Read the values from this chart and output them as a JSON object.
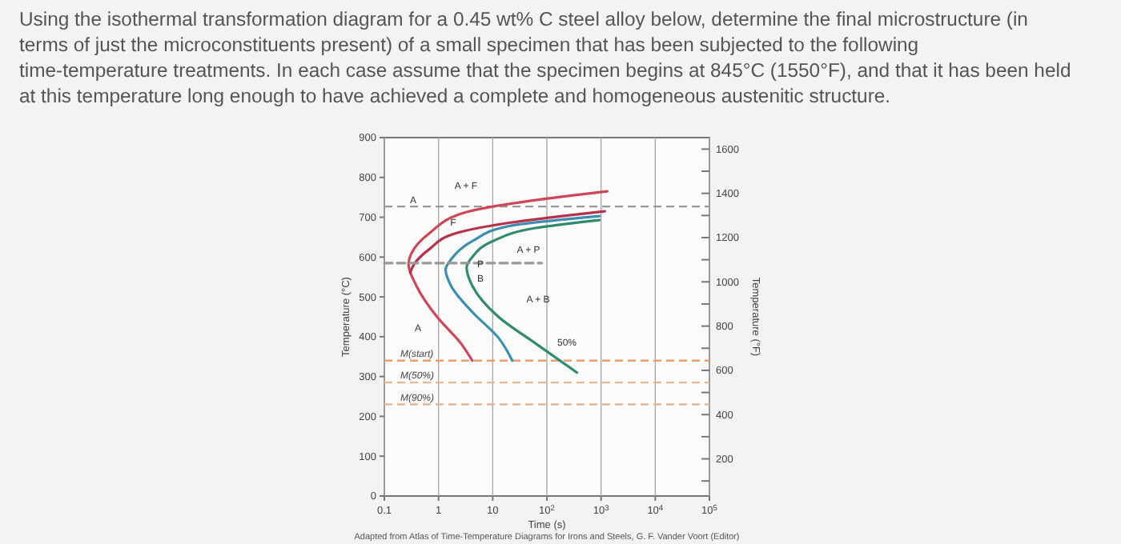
{
  "chart_data": {
    "type": "line",
    "title": "Using the isothermal transformation diagram for a 0.45 wt% C steel alloy below, determine the final microstructure (in terms of just the microconstituents present) of a small specimen that has been subjected to the following time-temperature treatments. In each case assume that the specimen begins at 845°C (1550°F), and that it has been held at this temperature long enough to have achieved a complete and homogeneous austenitic structure.",
    "xlabel": "Time (s)",
    "ylabel": "Temperature (°C)",
    "y2label": "Temperature (°F)",
    "log": "x",
    "grid": "x",
    "marker": "none",
    "xlim": [
      0.1,
      100000
    ],
    "xticks": [
      0.1,
      1,
      10,
      {
        "value": 100,
        "label": "10$^{2}$"
      },
      {
        "value": 1000,
        "label": "10$^{3}$"
      },
      {
        "value": 10000,
        "label": "10$^{4}$"
      },
      {
        "value": 100000,
        "label": "10$^{5}$"
      }
    ],
    "ylim": [
      0,
      900
    ],
    "yticks": [
      0,
      100,
      200,
      300,
      400,
      500,
      600,
      700,
      800,
      900
    ],
    "y2lim": [
      32,
      1652
    ],
    "y2ticks": [
      {
        "value": 100,
        "label": null
      },
      200,
      {
        "value": 300,
        "label": null
      },
      400,
      {
        "value": 500,
        "label": null
      },
      600,
      {
        "value": 700,
        "label": null
      },
      800,
      {
        "value": 900,
        "label": null
      },
      1000,
      {
        "value": 1100,
        "label": null
      },
      1200,
      {
        "value": 1300,
        "label": null
      },
      1400,
      {
        "value": 1500,
        "label": null
      },
      1600
    ],
    "series": [
      {
        "color": "#d0455a",
        "x": [
          1300,
          3.3,
          0.68,
          0.31,
          0.28,
          0.39,
          0.95,
          2.6,
          4.2
        ],
        "values": [
          765,
          713,
          660,
          607,
          581,
          528,
          449,
          383,
          340
        ]
      },
      {
        "color": "#b8304a",
        "x": [
          1170,
          20,
          2.1,
          0.68,
          0.35,
          0.3
        ],
        "values": [
          715,
          686,
          660,
          620,
          581,
          561
        ]
      },
      {
        "color": "#3a8fb0",
        "x": [
          930,
          20,
          4.2,
          1.7,
          1.35,
          1.7,
          4.2,
          13,
          23
        ],
        "values": [
          703,
          678,
          640,
          594,
          568,
          528,
          462,
          396,
          340
        ]
      },
      {
        "color": "#2e8b6e",
        "x": [
          930,
          62,
          10,
          4.2,
          3.3,
          4.2,
          13,
          62,
          360
        ],
        "values": [
          693,
          673,
          640,
          600,
          574,
          528,
          449,
          383,
          310
        ]
      },
      {
        "color": "#999999",
        "line_style": "dashed",
        "x": [
          0.1,
          80
        ],
        "values": [
          585,
          585
        ]
      }
    ],
    "ref_lines": [
      {
        "axis": "y",
        "value": 727,
        "color": "#999999",
        "line_style": "dashed"
      },
      {
        "axis": "y",
        "value": 340,
        "label": "M(start)",
        "color": "#e8a070",
        "line_style": "dashed"
      },
      {
        "axis": "y",
        "value": 285,
        "label": "M(50%)",
        "color": "#e8b890",
        "line_style": "dashed"
      },
      {
        "axis": "y",
        "value": 230,
        "label": "M(90%)",
        "color": "#e8b890",
        "line_style": "dashed"
      }
    ],
    "annotations": [
      "A",
      "A + F",
      "F",
      "A + P",
      "P",
      "B",
      "A + B",
      "A",
      "50%",
      "Adapted from Atlas of Time-Temperature Diagrams for Irons and Steels, G. F. Vander Voort (Editor)"
    ]
  }
}
